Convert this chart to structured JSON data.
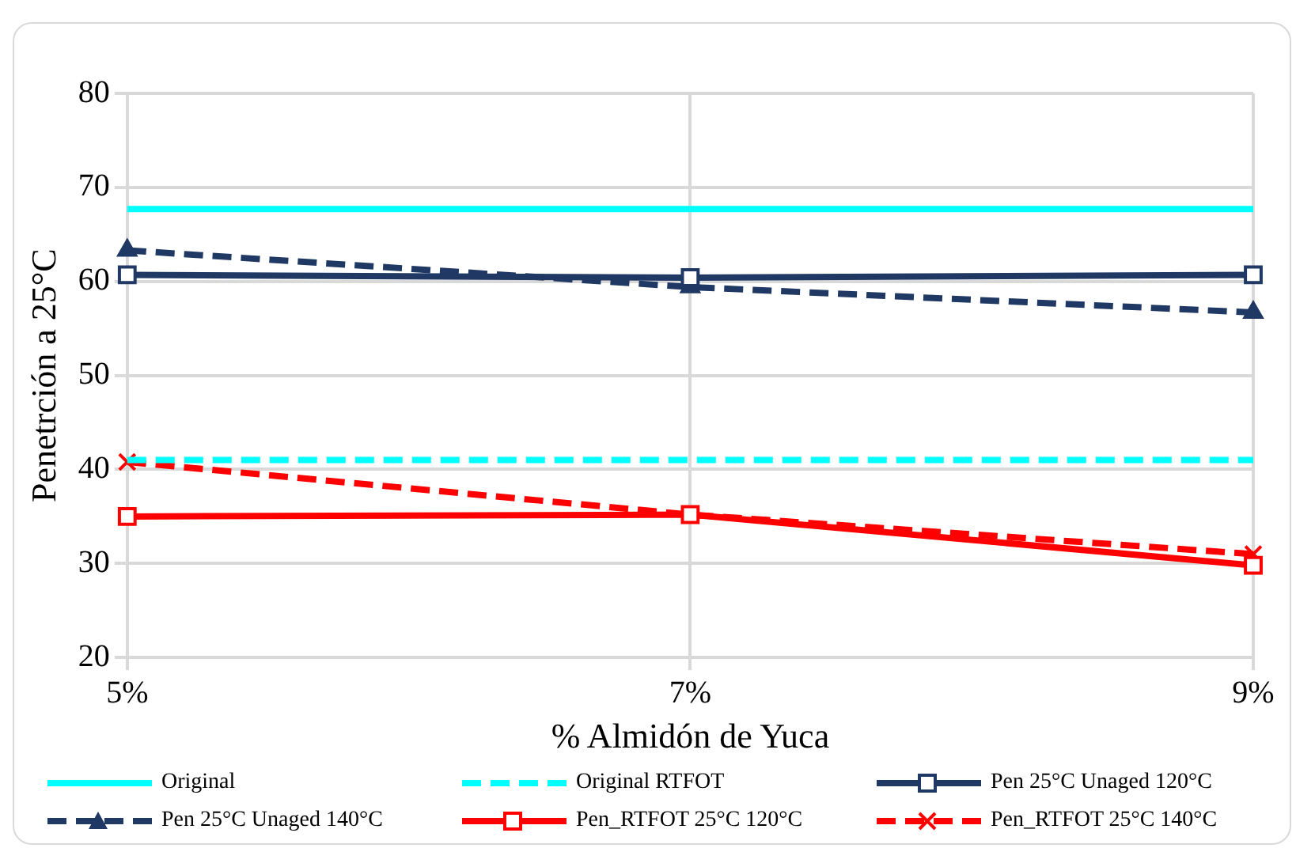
{
  "chart_data": {
    "type": "line",
    "xlabel": "% Almidón de Yuca",
    "ylabel": "Penetrción a 25°C",
    "categories": [
      "5%",
      "7%",
      "9%"
    ],
    "ylim": [
      20,
      80
    ],
    "yticks": [
      20,
      30,
      40,
      50,
      60,
      70,
      80
    ],
    "grid": true,
    "legend": "bottom",
    "series": [
      {
        "name": "Original",
        "color": "#00ffff",
        "values": [
          67.7,
          67.7,
          67.7
        ],
        "line_style": "solid",
        "marker": "none"
      },
      {
        "name": "Original RTFOT",
        "color": "#00ffff",
        "values": [
          41,
          41,
          41
        ],
        "line_style": "dashed",
        "marker": "none"
      },
      {
        "name": "Pen 25°C Unaged 120°C",
        "color": "#1f3864",
        "values": [
          60.7,
          60.4,
          60.7
        ],
        "line_style": "solid",
        "marker": "square"
      },
      {
        "name": "Pen 25°C Unaged 140°C",
        "color": "#1f3864",
        "values": [
          63.3,
          59.4,
          56.7
        ],
        "line_style": "dashed",
        "marker": "triangle"
      },
      {
        "name": "Pen_RTFOT 25°C 120°C",
        "color": "#ff0000",
        "values": [
          35,
          35.2,
          29.8
        ],
        "line_style": "solid",
        "marker": "square"
      },
      {
        "name": "Pen_RTFOT 25°C 140°C",
        "color": "#ff0000",
        "values": [
          40.8,
          35.2,
          31
        ],
        "line_style": "dashed",
        "marker": "cross"
      }
    ]
  }
}
